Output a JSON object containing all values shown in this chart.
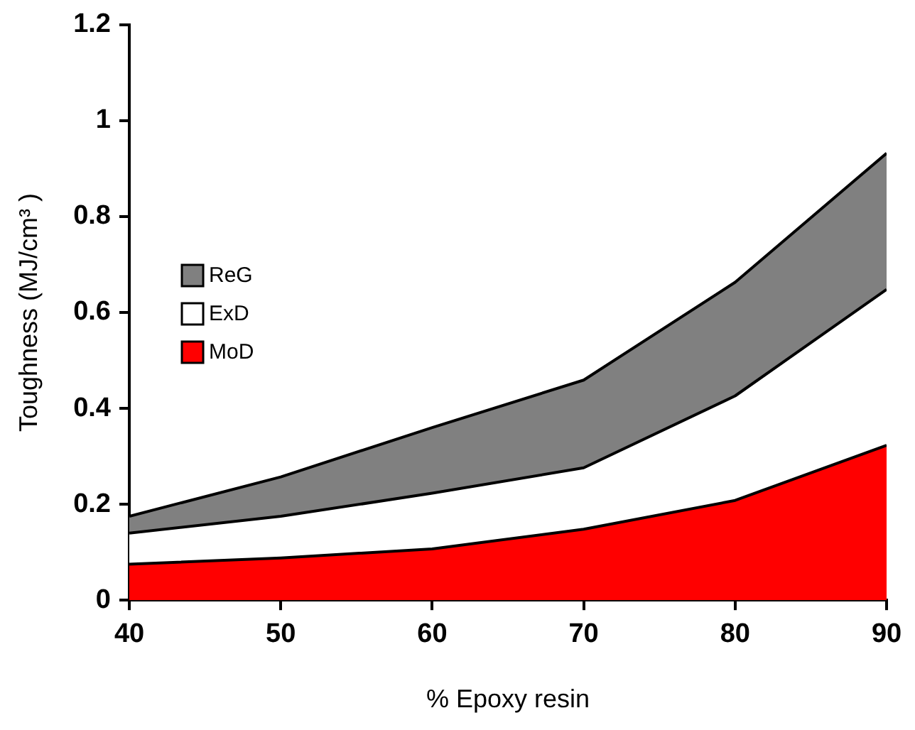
{
  "chart_data": {
    "type": "area",
    "stacked": true,
    "xlabel": "% Epoxy resin",
    "ylabel": "Toughness (MJ/cm³ )",
    "x": [
      40,
      50,
      60,
      70,
      80,
      90
    ],
    "xlim": [
      40,
      90
    ],
    "xticks": [
      40,
      50,
      60,
      70,
      80,
      90
    ],
    "ylim": [
      0,
      1.2
    ],
    "yticks": [
      0,
      0.2,
      0.4,
      0.6,
      0.8,
      1,
      1.2
    ],
    "grid": false,
    "legend": "left",
    "marker": "none",
    "series": [
      {
        "name": "MoD",
        "color": "#ff0000",
        "values": [
          0.075,
          0.088,
          0.107,
          0.148,
          0.208,
          0.323
        ]
      },
      {
        "name": "ExD",
        "color": "#ffffff",
        "values": [
          0.065,
          0.087,
          0.116,
          0.128,
          0.218,
          0.325
        ]
      },
      {
        "name": "ReG",
        "color": "#808080",
        "values": [
          0.035,
          0.082,
          0.137,
          0.183,
          0.237,
          0.284
        ]
      }
    ]
  }
}
